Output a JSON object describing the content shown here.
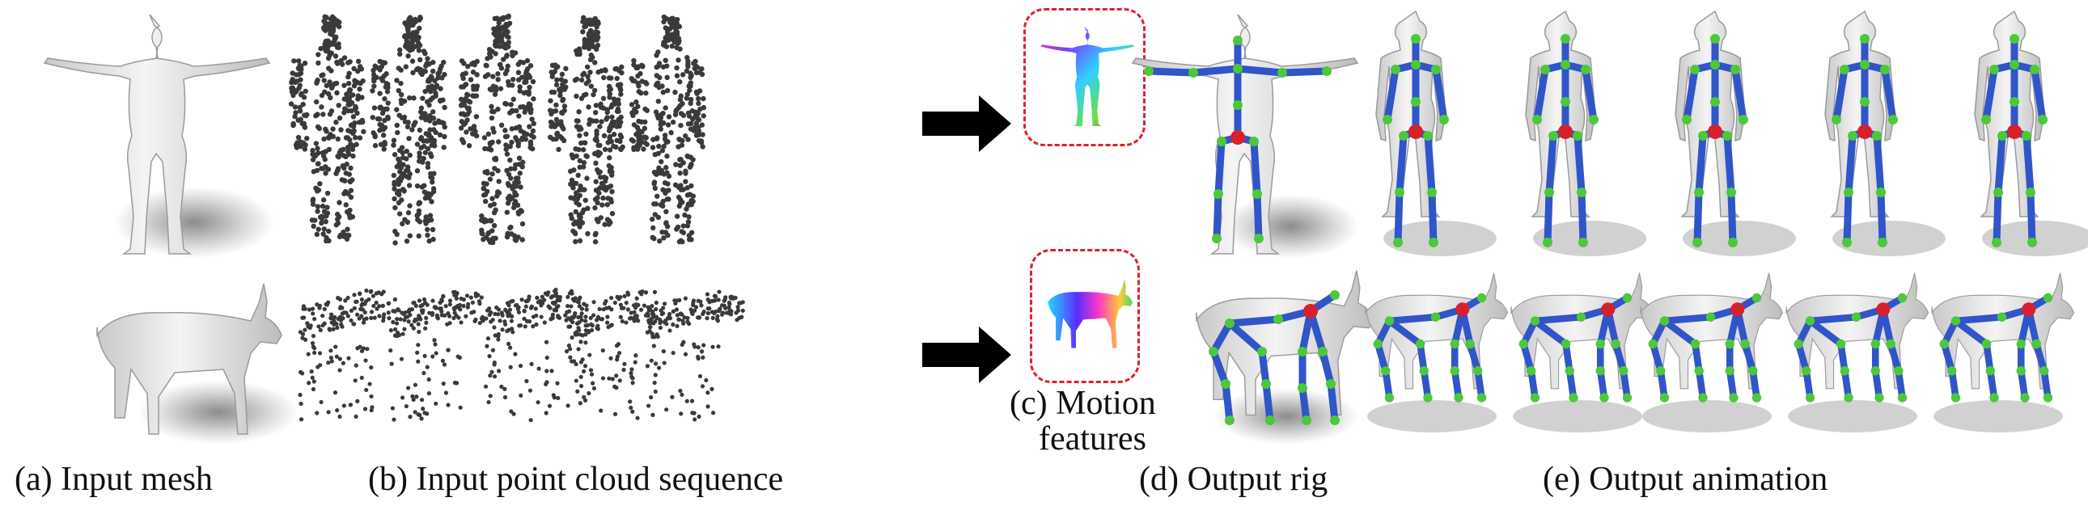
{
  "captions": {
    "a": "(a) Input mesh",
    "b": "(b) Input point cloud sequence",
    "c_line1": "(c) Motion",
    "c_line2": "features",
    "d": "(d) Output rig",
    "e": "(e) Output animation"
  },
  "colors": {
    "mesh": "#d6d6d6",
    "points": "#3a3a3a",
    "bone": "#2f55c8",
    "joint": "#4cc83a",
    "root_joint": "#d8202a",
    "arrow": "#000000",
    "inset_border": "#e0202a"
  }
}
